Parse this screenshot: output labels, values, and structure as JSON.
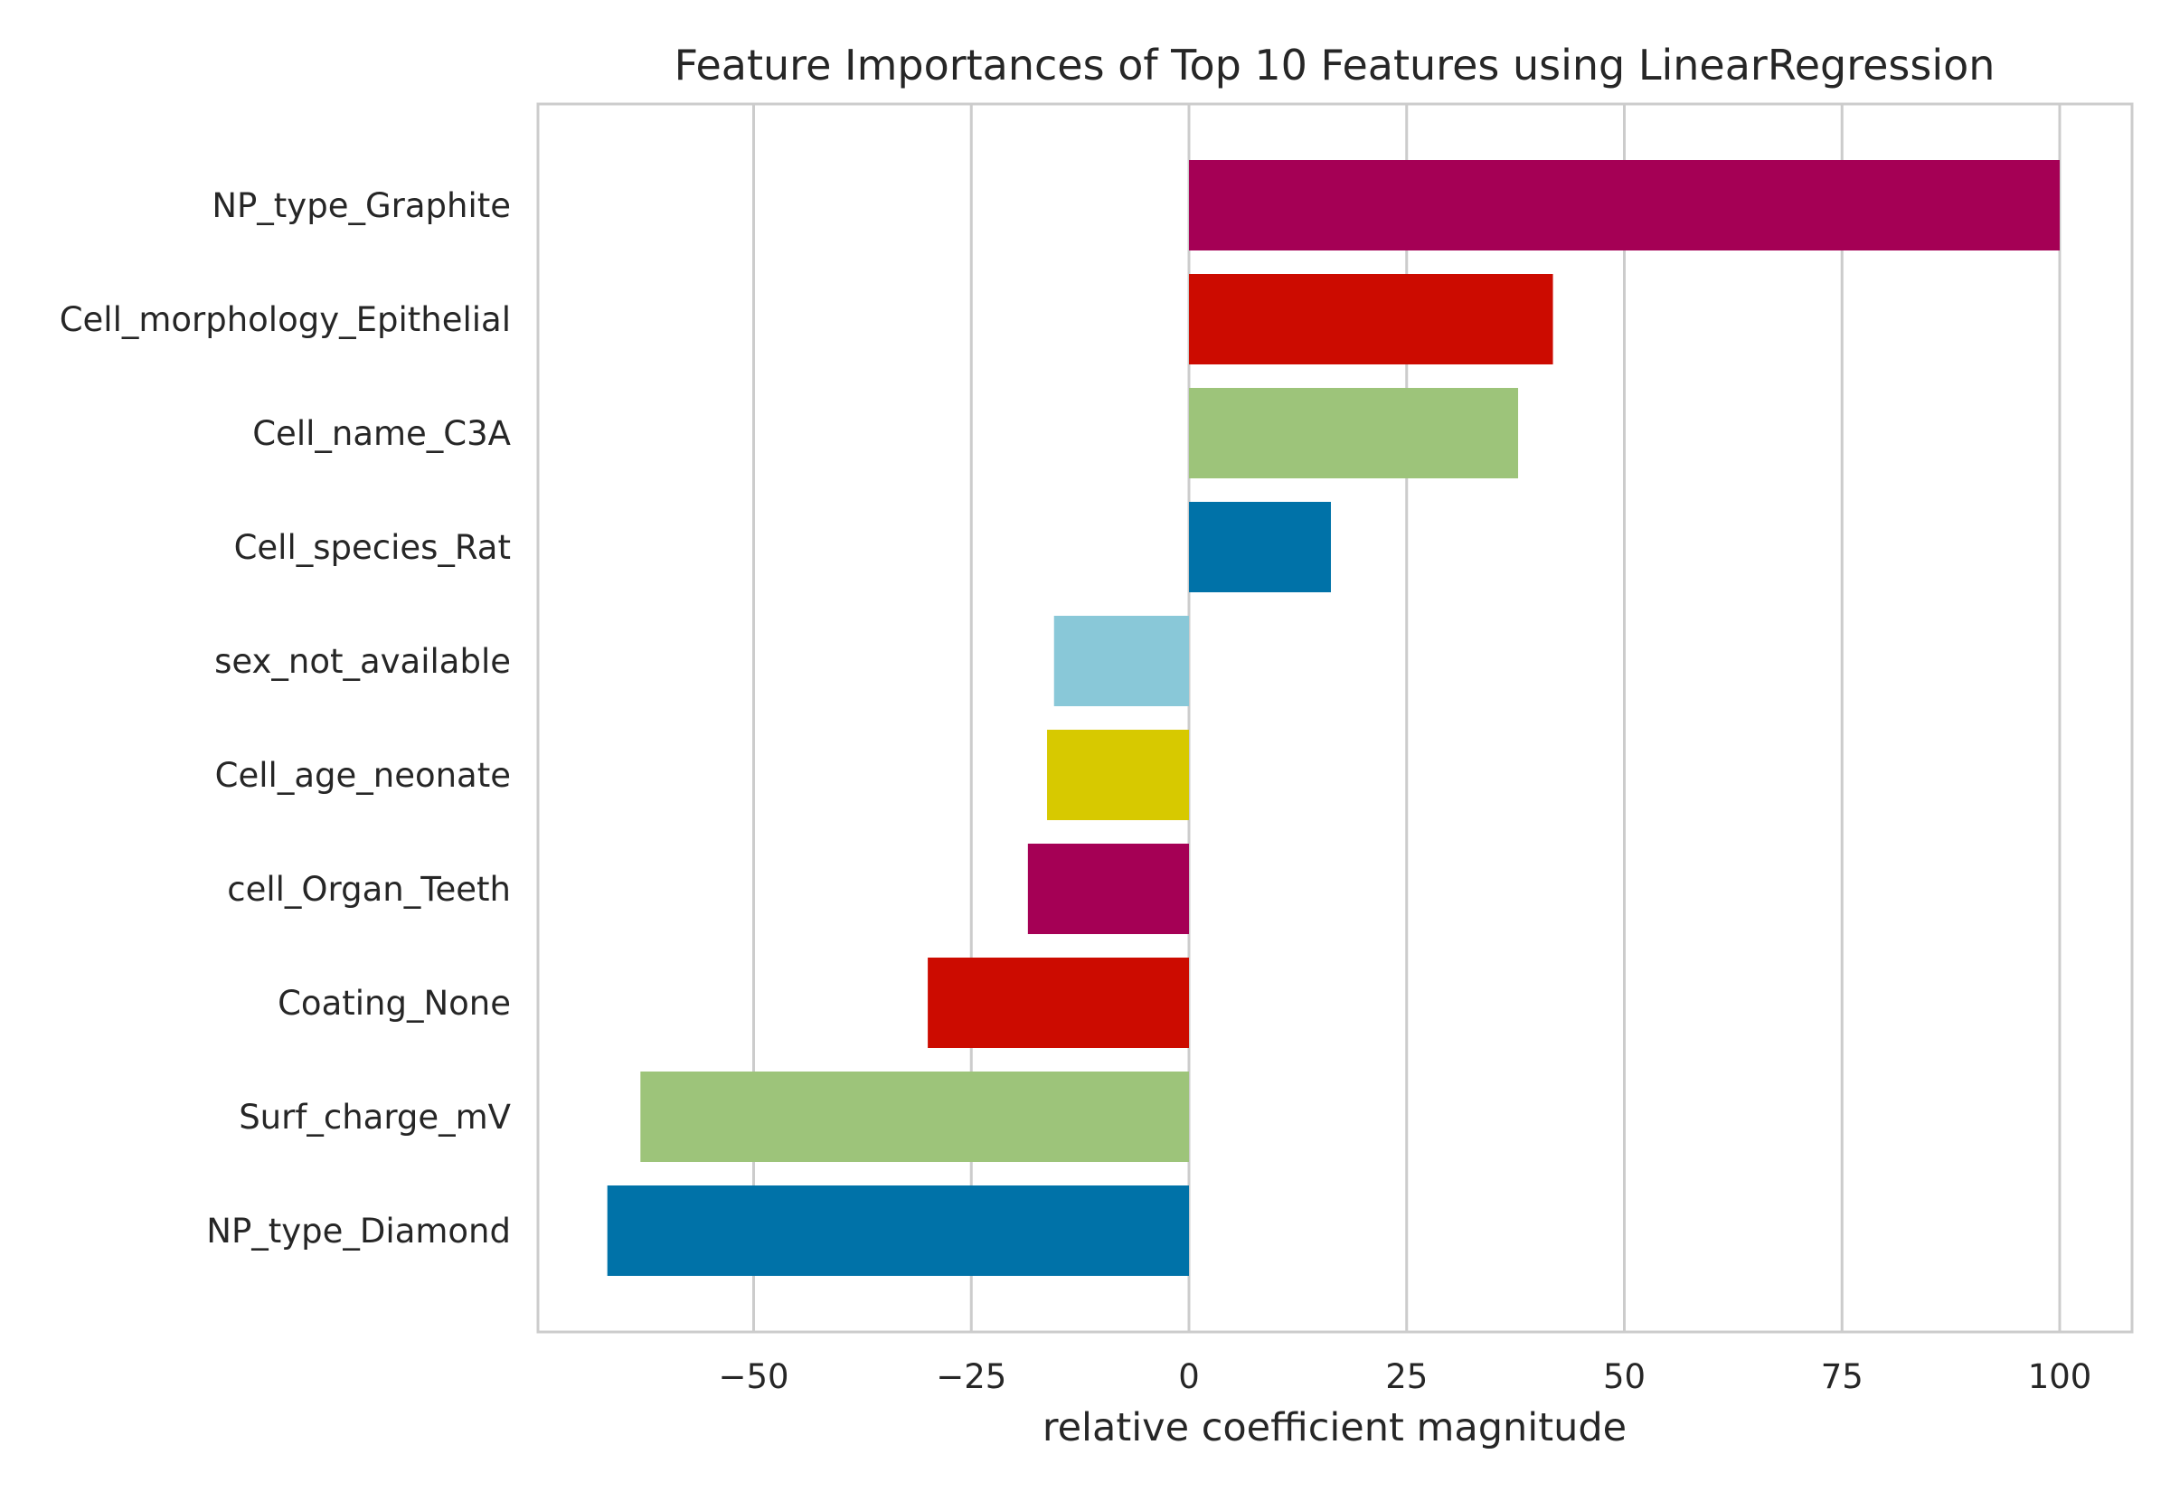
{
  "chart_data": {
    "type": "bar",
    "orientation": "horizontal",
    "title": "Feature Importances of Top 10 Features using LinearRegression",
    "xlabel": "relative coefficient magnitude",
    "ylabel": "",
    "xlim": [
      -75,
      104
    ],
    "xticks": [
      -50,
      -25,
      0,
      25,
      50,
      75,
      100
    ],
    "xtick_labels": [
      "−50",
      "−25",
      "0",
      "25",
      "50",
      "75",
      "100"
    ],
    "grid": true,
    "legend": "none",
    "categories": [
      "NP_type_Graphite",
      "Cell_morphology_Epithelial",
      "Cell_name_C3A",
      "Cell_species_Rat",
      "sex_not_available",
      "Cell_age_neonate",
      "cell_Organ_Teeth",
      "Coating_None",
      "Surf_charge_mV",
      "NP_type_Diamond"
    ],
    "values": [
      100,
      41.8,
      37.8,
      16.3,
      -15.5,
      -16.3,
      -18.5,
      -30,
      -63,
      -66.8
    ],
    "colors": [
      "#a50055",
      "#cc0b00",
      "#9dc47a",
      "#0072a8",
      "#89c8d8",
      "#d7c900",
      "#a50055",
      "#cc0b00",
      "#9dc47a",
      "#0072a8"
    ],
    "grid_color": "#cccccc",
    "frame_color": "#cccccc"
  }
}
